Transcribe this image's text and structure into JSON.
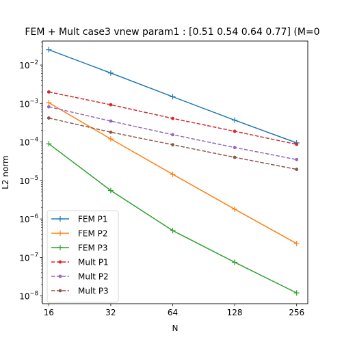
{
  "chart_data": {
    "type": "line",
    "title": "FEM + Mult case3 vnew param1 : [0.51 0.54 0.64 0.77] (M=0",
    "xlabel": "N",
    "ylabel": "L2 norm",
    "x_scale": "log2",
    "y_scale": "log10",
    "x": [
      16,
      32,
      64,
      128,
      256
    ],
    "x_tick_labels": [
      "16",
      "32",
      "64",
      "128",
      "256"
    ],
    "y_ticks": [
      {
        "exp": -8,
        "label_base": "10",
        "label_exp": "−8"
      },
      {
        "exp": -7,
        "label_base": "10",
        "label_exp": "−7"
      },
      {
        "exp": -6,
        "label_base": "10",
        "label_exp": "−6"
      },
      {
        "exp": -5,
        "label_base": "10",
        "label_exp": "−5"
      },
      {
        "exp": -4,
        "label_base": "10",
        "label_exp": "−4"
      },
      {
        "exp": -3,
        "label_base": "10",
        "label_exp": "−3"
      },
      {
        "exp": -2,
        "label_base": "10",
        "label_exp": "−2"
      }
    ],
    "xlim": [
      14.9,
      290
    ],
    "ylim": [
      6.3e-09,
      0.042
    ],
    "grid": false,
    "legend_position": "lower-left",
    "series": [
      {
        "name": "FEM P1",
        "color": "#1f77b4",
        "linestyle": "solid",
        "marker": "plus",
        "values": [
          0.025,
          0.0062,
          0.0015,
          0.00037,
          9.5e-05
        ]
      },
      {
        "name": "FEM P2",
        "color": "#ff7f0e",
        "linestyle": "solid",
        "marker": "plus",
        "values": [
          0.00105,
          0.00012,
          1.45e-05,
          1.8e-06,
          2.3e-07
        ]
      },
      {
        "name": "FEM P3",
        "color": "#2ca02c",
        "linestyle": "solid",
        "marker": "plus",
        "values": [
          9e-05,
          5.5e-06,
          5e-07,
          7.5e-08,
          1.2e-08
        ]
      },
      {
        "name": "Mult P1",
        "color": "#d62728",
        "linestyle": "dashed",
        "marker": "dot",
        "values": [
          0.002,
          0.00093,
          0.00041,
          0.00019,
          8.7e-05
        ]
      },
      {
        "name": "Mult P2",
        "color": "#9467bd",
        "linestyle": "dashed",
        "marker": "dot",
        "values": [
          0.00082,
          0.00035,
          0.000155,
          7.2e-05,
          3.5e-05
        ]
      },
      {
        "name": "Mult P3",
        "color": "#8c564b",
        "linestyle": "dashed",
        "marker": "dot",
        "values": [
          0.00042,
          0.00018,
          8.5e-05,
          4e-05,
          1.95e-05
        ]
      }
    ]
  }
}
